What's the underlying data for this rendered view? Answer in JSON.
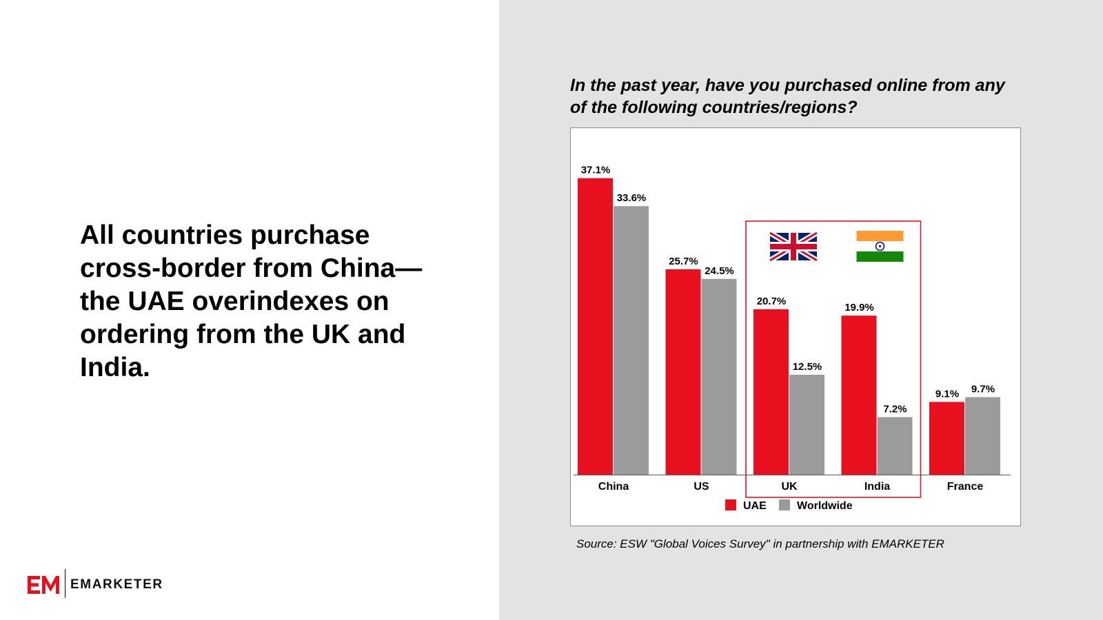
{
  "headline": "All countries purchase cross-border from China—the UAE overindexes on ordering from the UK and India.",
  "logo": {
    "text": "EMARKETER",
    "mark": "EM"
  },
  "colors": {
    "uae": "#e8101e",
    "worldwide": "#9b9b9b",
    "highlight": "#e8101e",
    "panel": "#e3e3e3"
  },
  "chart_data": {
    "type": "bar",
    "title": "In the past year, have you purchased online from any of the following countries/regions?",
    "categories": [
      "China",
      "US",
      "UK",
      "India",
      "France"
    ],
    "series": [
      {
        "name": "UAE",
        "values": [
          37.1,
          25.7,
          20.7,
          19.9,
          9.1
        ],
        "labels": [
          "37.1%",
          "25.7%",
          "20.7%",
          "19.9%",
          "9.1%"
        ],
        "color": "#e8101e"
      },
      {
        "name": "Worldwide",
        "values": [
          33.6,
          24.5,
          12.5,
          7.2,
          9.7
        ],
        "labels": [
          "33.6%",
          "24.5%",
          "12.5%",
          "7.2%",
          "9.7%"
        ],
        "color": "#9b9b9b"
      }
    ],
    "ylim": [
      0,
      40
    ],
    "grid": false,
    "legend": "bottom-center",
    "highlighted_categories": [
      "UK",
      "India"
    ],
    "flags": [
      "uk-flag",
      "india-flag"
    ]
  },
  "source": "Source: ESW \"Global Voices Survey\" in partnership with EMARKETER"
}
